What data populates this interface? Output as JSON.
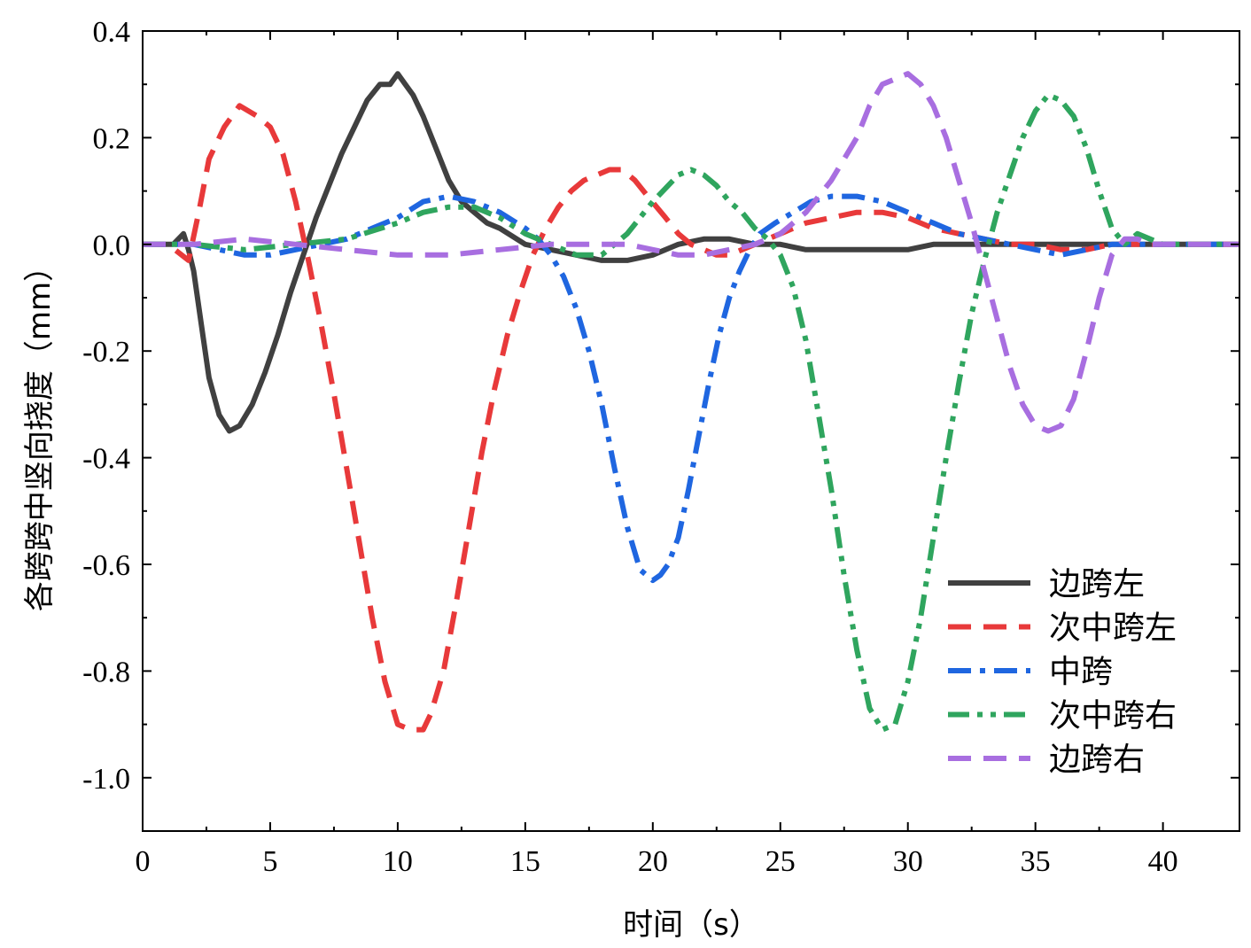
{
  "chart_data": {
    "type": "line",
    "title": "",
    "xlabel": "时间（s）",
    "ylabel": "各跨跨中竖向挠度（mm）",
    "xlim": [
      0,
      43
    ],
    "ylim": [
      -1.1,
      0.4
    ],
    "xticks": [
      0,
      5,
      10,
      15,
      20,
      25,
      30,
      35,
      40
    ],
    "xtick_labels": [
      "0",
      "5",
      "10",
      "15",
      "20",
      "25",
      "30",
      "35",
      "40"
    ],
    "yticks": [
      0.4,
      0.2,
      0.0,
      -0.2,
      -0.4,
      -0.6,
      -0.8,
      -1.0
    ],
    "ytick_labels": [
      "0.4",
      "0.2",
      "0.0",
      "-0.2",
      "-0.4",
      "-0.6",
      "-0.8",
      "-1.0"
    ],
    "grid": false,
    "legend_position": "bottom-right",
    "series": [
      {
        "name": "边跨左",
        "color": "#404040",
        "dash": "solid",
        "x": [
          0,
          1.2,
          1.6,
          1.8,
          2.0,
          2.3,
          2.6,
          3.0,
          3.4,
          3.8,
          4.3,
          4.8,
          5.3,
          5.8,
          6.3,
          6.8,
          7.3,
          7.8,
          8.3,
          8.8,
          9.3,
          9.7,
          10.0,
          10.3,
          10.6,
          11.0,
          11.5,
          12.0,
          12.5,
          13.0,
          13.5,
          14.0,
          15.0,
          16.0,
          17.0,
          18.0,
          19.0,
          20.0,
          21.0,
          22.0,
          23.0,
          24.0,
          25.0,
          26.0,
          27.0,
          28.0,
          29.0,
          30.0,
          31.0,
          32.0,
          33.0,
          34.0,
          35.0,
          36.0,
          37.0,
          38.0,
          39.0,
          40.0,
          41.0,
          42.0,
          43.0
        ],
        "y": [
          0.0,
          0.0,
          0.02,
          -0.01,
          -0.05,
          -0.15,
          -0.25,
          -0.32,
          -0.35,
          -0.34,
          -0.3,
          -0.24,
          -0.17,
          -0.09,
          -0.02,
          0.05,
          0.11,
          0.17,
          0.22,
          0.27,
          0.3,
          0.3,
          0.32,
          0.3,
          0.28,
          0.24,
          0.18,
          0.12,
          0.08,
          0.06,
          0.04,
          0.03,
          0.0,
          -0.01,
          -0.02,
          -0.03,
          -0.03,
          -0.02,
          0.0,
          0.01,
          0.01,
          0.0,
          0.0,
          -0.01,
          -0.01,
          -0.01,
          -0.01,
          -0.01,
          0.0,
          0.0,
          0.0,
          0.0,
          0.0,
          0.0,
          0.0,
          0.0,
          0.0,
          0.0,
          0.0,
          0.0,
          0.0
        ]
      },
      {
        "name": "次中跨左",
        "color": "#e8393a",
        "dash": "dash",
        "x": [
          0,
          1.0,
          1.8,
          2.2,
          2.6,
          3.2,
          3.8,
          4.5,
          5.0,
          5.5,
          6.0,
          6.5,
          7.0,
          7.5,
          8.0,
          8.5,
          9.0,
          9.5,
          10.0,
          10.5,
          11.0,
          11.3,
          11.8,
          12.3,
          12.8,
          13.3,
          13.8,
          14.3,
          14.8,
          15.3,
          15.8,
          16.3,
          16.8,
          17.3,
          17.8,
          18.3,
          18.8,
          19.3,
          19.8,
          20.5,
          21.0,
          21.5,
          22.0,
          22.5,
          23.0,
          24.0,
          25.0,
          26.0,
          27.0,
          28.0,
          29.0,
          30.0,
          31.0,
          32.0,
          33.0,
          34.0,
          35.0,
          36.0,
          37.0,
          38.0,
          39.0,
          40.0,
          41.0,
          42.0,
          43.0
        ],
        "y": [
          0.0,
          0.0,
          -0.03,
          0.06,
          0.16,
          0.22,
          0.26,
          0.24,
          0.22,
          0.17,
          0.08,
          -0.03,
          -0.15,
          -0.28,
          -0.42,
          -0.56,
          -0.7,
          -0.82,
          -0.9,
          -0.91,
          -0.91,
          -0.88,
          -0.8,
          -0.67,
          -0.53,
          -0.39,
          -0.27,
          -0.17,
          -0.09,
          -0.02,
          0.03,
          0.07,
          0.1,
          0.12,
          0.13,
          0.14,
          0.14,
          0.12,
          0.09,
          0.05,
          0.02,
          0.0,
          -0.01,
          -0.02,
          -0.02,
          0.0,
          0.02,
          0.04,
          0.05,
          0.06,
          0.06,
          0.05,
          0.03,
          0.02,
          0.01,
          0.0,
          0.0,
          -0.01,
          -0.01,
          0.0,
          0.0,
          0.0,
          0.0,
          0.0,
          0.0
        ]
      },
      {
        "name": "中跨",
        "color": "#1f66e0",
        "dash": "dashdot",
        "x": [
          0,
          2.0,
          3.0,
          4.0,
          5.0,
          6.0,
          7.0,
          8.0,
          9.0,
          10.0,
          11.0,
          12.0,
          13.0,
          14.0,
          15.0,
          15.5,
          16.0,
          16.5,
          17.0,
          17.5,
          18.0,
          18.5,
          19.0,
          19.5,
          20.0,
          20.3,
          20.6,
          21.0,
          21.4,
          21.8,
          22.2,
          22.6,
          23.0,
          23.4,
          23.8,
          24.2,
          24.8,
          25.5,
          26.2,
          27.0,
          28.0,
          29.0,
          30.0,
          31.0,
          32.0,
          33.0,
          34.0,
          35.0,
          36.0,
          37.0,
          38.0,
          39.0,
          40.0,
          41.0,
          42.0,
          43.0
        ],
        "y": [
          0.0,
          0.0,
          -0.01,
          -0.02,
          -0.02,
          -0.01,
          0.0,
          0.01,
          0.03,
          0.05,
          0.08,
          0.09,
          0.08,
          0.06,
          0.03,
          0.01,
          -0.02,
          -0.06,
          -0.12,
          -0.2,
          -0.3,
          -0.42,
          -0.53,
          -0.61,
          -0.63,
          -0.62,
          -0.6,
          -0.55,
          -0.46,
          -0.36,
          -0.26,
          -0.17,
          -0.1,
          -0.05,
          -0.01,
          0.02,
          0.04,
          0.06,
          0.08,
          0.09,
          0.09,
          0.08,
          0.06,
          0.04,
          0.02,
          0.01,
          0.0,
          -0.01,
          -0.02,
          -0.01,
          0.0,
          0.0,
          0.0,
          0.0,
          0.0,
          0.0
        ]
      },
      {
        "name": "次中跨右",
        "color": "#2fa55e",
        "dash": "dashdotdot",
        "x": [
          0,
          2.0,
          4.0,
          6.0,
          8.0,
          10.0,
          11.0,
          12.0,
          13.0,
          14.0,
          15.0,
          16.0,
          17.0,
          18.0,
          19.0,
          20.0,
          21.0,
          21.5,
          22.0,
          22.5,
          23.0,
          23.5,
          24.0,
          24.5,
          25.0,
          25.5,
          26.0,
          26.5,
          27.0,
          27.5,
          28.0,
          28.5,
          29.0,
          29.5,
          30.0,
          30.5,
          31.0,
          31.5,
          32.0,
          32.5,
          33.0,
          33.5,
          34.0,
          34.5,
          35.0,
          35.5,
          36.0,
          36.5,
          37.0,
          37.5,
          38.0,
          38.5,
          39.0,
          39.5,
          40.0,
          41.0,
          42.0,
          43.0
        ],
        "y": [
          0.0,
          0.0,
          -0.01,
          0.0,
          0.01,
          0.04,
          0.06,
          0.07,
          0.07,
          0.05,
          0.02,
          0.0,
          -0.02,
          -0.02,
          0.02,
          0.08,
          0.13,
          0.14,
          0.13,
          0.11,
          0.08,
          0.06,
          0.03,
          0.01,
          -0.02,
          -0.08,
          -0.18,
          -0.32,
          -0.46,
          -0.62,
          -0.76,
          -0.87,
          -0.91,
          -0.9,
          -0.82,
          -0.7,
          -0.55,
          -0.4,
          -0.26,
          -0.13,
          -0.03,
          0.06,
          0.13,
          0.2,
          0.25,
          0.28,
          0.27,
          0.24,
          0.18,
          0.1,
          0.03,
          0.0,
          0.02,
          0.01,
          0.0,
          0.0,
          0.0,
          0.0
        ]
      },
      {
        "name": "边跨右",
        "color": "#a86ee0",
        "dash": "dash",
        "x": [
          0,
          2.0,
          4.0,
          6.0,
          8.0,
          10.0,
          12.0,
          14.0,
          16.0,
          17.0,
          18.0,
          19.0,
          20.0,
          21.0,
          22.0,
          23.0,
          24.0,
          25.0,
          26.0,
          27.0,
          28.0,
          28.5,
          29.0,
          29.5,
          30.0,
          30.5,
          31.0,
          31.5,
          32.0,
          32.5,
          33.0,
          33.5,
          34.0,
          34.5,
          35.0,
          35.5,
          36.0,
          36.5,
          37.0,
          37.5,
          38.0,
          38.5,
          39.0,
          39.5,
          40.0,
          41.0,
          42.0,
          43.0
        ],
        "y": [
          0.0,
          0.0,
          0.01,
          0.0,
          -0.01,
          -0.02,
          -0.02,
          -0.01,
          0.0,
          0.0,
          0.0,
          0.0,
          -0.01,
          -0.02,
          -0.02,
          -0.01,
          0.0,
          0.02,
          0.06,
          0.12,
          0.2,
          0.26,
          0.3,
          0.31,
          0.32,
          0.3,
          0.26,
          0.2,
          0.12,
          0.04,
          -0.05,
          -0.14,
          -0.23,
          -0.3,
          -0.34,
          -0.35,
          -0.34,
          -0.29,
          -0.2,
          -0.1,
          -0.02,
          0.01,
          0.01,
          0.0,
          0.0,
          0.0,
          0.0,
          0.0
        ]
      }
    ]
  }
}
